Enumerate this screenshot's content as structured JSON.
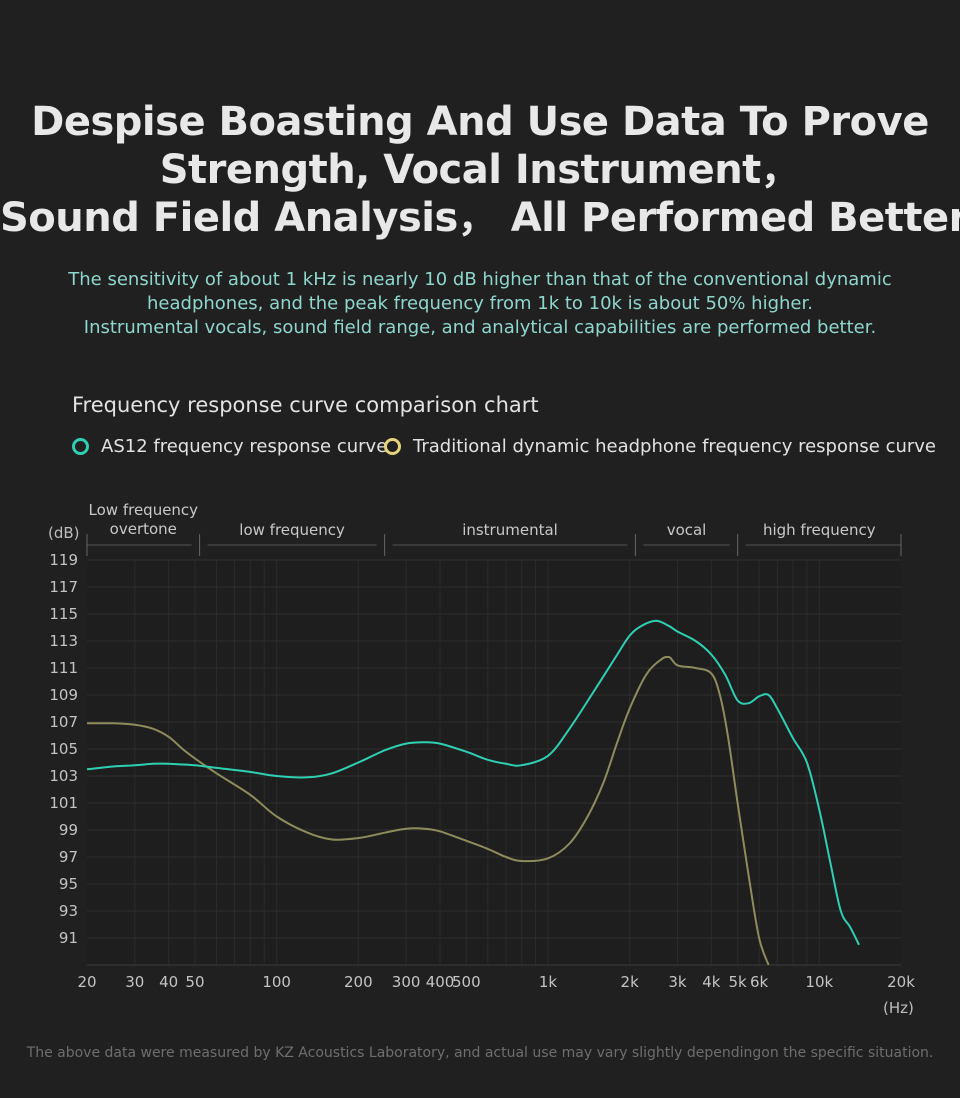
{
  "headline": {
    "line1": "Despise Boasting And Use Data To Prove",
    "line2": "Strength, Vocal Instrument，",
    "line3": "Sound Field Analysis， All Performed Better."
  },
  "subtext": {
    "line1": "The sensitivity of about 1 kHz is nearly 10 dB higher than that of the conventional dynamic",
    "line2": "headphones, and the peak frequency from 1k to 10k is about 50% higher.",
    "line3": "Instrumental vocals, sound field range, and analytical capabilities are performed better."
  },
  "chart_title": "Frequency response curve comparison chart",
  "footnote": "The above data were measured by KZ Acoustics Laboratory, and actual use may vary slightly dependingon the specific situation.",
  "colors": {
    "series_as12": "#2fcfb2",
    "series_traditional": "#8e8c5c",
    "legend_traditional_dot": "#e6d27a",
    "background": "#202020",
    "grid": "#2e2e2e",
    "text_muted": "#bdbdbd"
  },
  "chart_data": {
    "type": "line",
    "title": "Frequency response curve comparison chart",
    "xlabel": "(Hz)",
    "ylabel": "(dB)",
    "x_scale": "log",
    "xlim": [
      20,
      20000
    ],
    "ylim": [
      89,
      119
    ],
    "grid": true,
    "legend_placement": "top",
    "y_ticks": [
      119,
      117,
      115,
      113,
      111,
      109,
      107,
      105,
      103,
      101,
      99,
      97,
      95,
      93,
      91
    ],
    "x_ticks": [
      {
        "value": 20,
        "label": "20"
      },
      {
        "value": 30,
        "label": "30"
      },
      {
        "value": 40,
        "label": "40"
      },
      {
        "value": 50,
        "label": "50"
      },
      {
        "value": 100,
        "label": "100"
      },
      {
        "value": 200,
        "label": "200"
      },
      {
        "value": 300,
        "label": "300"
      },
      {
        "value": 400,
        "label": "400"
      },
      {
        "value": 500,
        "label": "500"
      },
      {
        "value": 1000,
        "label": "1k"
      },
      {
        "value": 2000,
        "label": "2k"
      },
      {
        "value": 3000,
        "label": "3k"
      },
      {
        "value": 4000,
        "label": "4k"
      },
      {
        "value": 5000,
        "label": "5k"
      },
      {
        "value": 6000,
        "label": "6k"
      },
      {
        "value": 10000,
        "label": "10k"
      },
      {
        "value": 20000,
        "label": "20k"
      }
    ],
    "bands": [
      {
        "label": "Low frequency\novertone",
        "from": 20,
        "to": 52
      },
      {
        "label": "low frequency",
        "from": 52,
        "to": 250
      },
      {
        "label": "instrumental",
        "from": 250,
        "to": 2100
      },
      {
        "label": "vocal",
        "from": 2100,
        "to": 5000
      },
      {
        "label": "high frequency",
        "from": 5000,
        "to": 20000
      }
    ],
    "series": [
      {
        "name": "AS12 frequency response curve",
        "color": "#2fcfb2",
        "x": [
          20,
          25,
          30,
          35,
          40,
          50,
          60,
          80,
          100,
          130,
          160,
          200,
          250,
          300,
          350,
          400,
          500,
          600,
          700,
          800,
          1000,
          1200,
          1500,
          1800,
          2000,
          2200,
          2500,
          2800,
          3000,
          3500,
          4000,
          4500,
          5000,
          5500,
          6000,
          6500,
          7000,
          8000,
          9000,
          10000,
          11000,
          12000,
          13000,
          14000
        ],
        "y": [
          103.5,
          103.7,
          103.8,
          103.9,
          103.9,
          103.8,
          103.6,
          103.3,
          103.0,
          102.9,
          103.2,
          104.0,
          104.9,
          105.4,
          105.5,
          105.4,
          104.8,
          104.2,
          103.9,
          103.8,
          104.5,
          106.5,
          109.5,
          112.0,
          113.4,
          114.1,
          114.5,
          114.1,
          113.7,
          113.0,
          112.0,
          110.5,
          108.6,
          108.4,
          108.9,
          109.0,
          108.0,
          105.8,
          104.0,
          100.5,
          96.5,
          93.0,
          91.8,
          90.5
        ]
      },
      {
        "name": "Traditional dynamic headphone frequency response curve",
        "color": "#8e8c5c",
        "x": [
          20,
          25,
          30,
          35,
          40,
          45,
          50,
          60,
          80,
          100,
          130,
          160,
          200,
          250,
          300,
          350,
          400,
          500,
          600,
          700,
          800,
          1000,
          1200,
          1400,
          1600,
          1800,
          2000,
          2300,
          2600,
          2800,
          3000,
          3500,
          4000,
          4300,
          4600,
          5000,
          5500,
          6000,
          6500
        ],
        "y": [
          106.9,
          106.9,
          106.8,
          106.5,
          105.9,
          105.0,
          104.3,
          103.2,
          101.6,
          100.0,
          98.8,
          98.3,
          98.4,
          98.8,
          99.1,
          99.1,
          98.9,
          98.2,
          97.6,
          97.0,
          96.7,
          96.9,
          98.0,
          100.0,
          102.5,
          105.5,
          108.0,
          110.5,
          111.6,
          111.8,
          111.2,
          111.0,
          110.6,
          109.0,
          106.0,
          101.0,
          95.5,
          91.0,
          89.0
        ]
      }
    ]
  }
}
